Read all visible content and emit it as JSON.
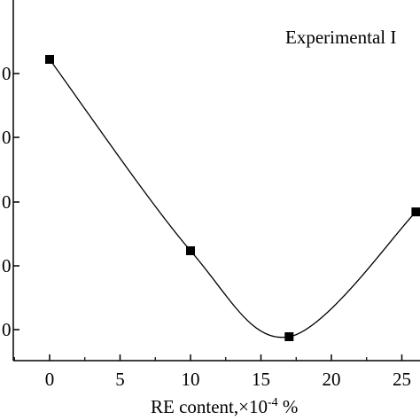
{
  "chart_data": {
    "type": "line",
    "title": "",
    "xlabel": "RE content,×10",
    "xlabel_superscript": "-4",
    "xlabel_unit": " %",
    "ylabel": "",
    "xlim": [
      -2.5,
      26.5
    ],
    "x_ticks": [
      0,
      5,
      10,
      15,
      20,
      25
    ],
    "x_tick_labels": [
      "0",
      "5",
      "10",
      "15",
      "20",
      "25"
    ],
    "y_tick_labels": [
      "0",
      "0",
      "0",
      "0",
      "0"
    ],
    "legend": {
      "text": "Experimental I",
      "position": "top-right"
    },
    "grid": false,
    "series": [
      {
        "marker": "square",
        "points": [
          {
            "x": 0,
            "y": 1.0
          },
          {
            "x": 10,
            "y": 0.31
          },
          {
            "x": 17,
            "y": 0.0
          },
          {
            "x": 26,
            "y": 0.45
          }
        ]
      }
    ]
  }
}
